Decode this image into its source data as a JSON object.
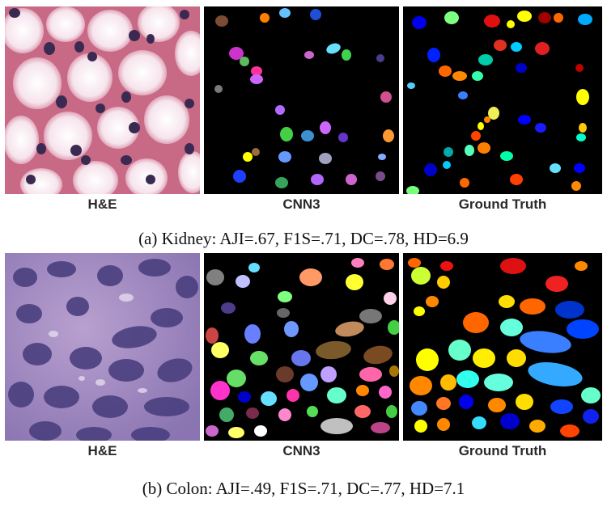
{
  "figure": {
    "rows": [
      {
        "labels": [
          "H&E",
          "CNN3",
          "Ground Truth"
        ],
        "caption": "(a) Kidney: AJI=.67, F1S=.71, DC=.78, HD=6.9"
      },
      {
        "labels": [
          "H&E",
          "CNN3",
          "Ground Truth"
        ],
        "caption": "(b) Colon: AJI=.49, F1S=.71, DC=.77, HD=7.1"
      }
    ]
  }
}
